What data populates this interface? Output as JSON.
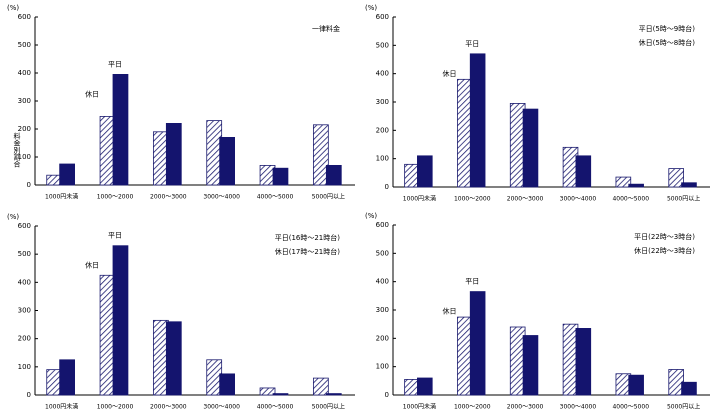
{
  "chart_data": [
    {
      "type": "bar",
      "unit_label": "(%)",
      "y_label": "料金別割合",
      "annotations": [
        "一律料金"
      ],
      "categories": [
        "1000円未満",
        "1000～2000",
        "2000～3000",
        "3000～4000",
        "4000～5000",
        "5000円以上"
      ],
      "series": [
        {
          "name": "休日",
          "color": "#1a1a6e",
          "pattern": "hatch",
          "values": [
            35,
            245,
            190,
            230,
            70,
            215
          ]
        },
        {
          "name": "平日",
          "color": "#14146e",
          "pattern": "solid",
          "values": [
            75,
            395,
            220,
            170,
            60,
            70
          ]
        }
      ],
      "ylim": [
        0,
        600
      ],
      "yticks": [
        0,
        100,
        200,
        300,
        400,
        500,
        600
      ]
    },
    {
      "type": "bar",
      "unit_label": "(%)",
      "annotations": [
        "平日(5時～9時台)",
        "休日(5時～8時台)"
      ],
      "categories": [
        "1000円未満",
        "1000～2000",
        "2000～3000",
        "3000～4000",
        "4000～5000",
        "5000円以上"
      ],
      "series": [
        {
          "name": "休日",
          "color": "#1a1a6e",
          "pattern": "hatch",
          "values": [
            80,
            380,
            295,
            140,
            35,
            65
          ]
        },
        {
          "name": "平日",
          "color": "#14146e",
          "pattern": "solid",
          "values": [
            110,
            470,
            275,
            110,
            10,
            15
          ]
        }
      ],
      "ylim": [
        0,
        600
      ],
      "yticks": [
        0,
        100,
        200,
        300,
        400,
        500,
        600
      ]
    },
    {
      "type": "bar",
      "unit_label": "(%)",
      "annotations": [
        "平日(16時～21時台)",
        "休日(17時～21時台)"
      ],
      "categories": [
        "1000円未満",
        "1000～2000",
        "2000～3000",
        "3000～4000",
        "4000～5000",
        "5000円以上"
      ],
      "series": [
        {
          "name": "休日",
          "color": "#1a1a6e",
          "pattern": "hatch",
          "values": [
            90,
            425,
            265,
            125,
            25,
            60
          ]
        },
        {
          "name": "平日",
          "color": "#14146e",
          "pattern": "solid",
          "values": [
            125,
            530,
            260,
            75,
            5,
            5
          ]
        }
      ],
      "ylim": [
        0,
        600
      ],
      "yticks": [
        0,
        100,
        200,
        300,
        400,
        500,
        600
      ]
    },
    {
      "type": "bar",
      "unit_label": "(%)",
      "annotations": [
        "平日(22時～3時台)",
        "休日(22時～3時台)"
      ],
      "categories": [
        "1000円未満",
        "1000～2000",
        "2000～3000",
        "3000～4000",
        "4000～5000",
        "5000円以上"
      ],
      "series": [
        {
          "name": "休日",
          "color": "#1a1a6e",
          "pattern": "hatch",
          "values": [
            55,
            275,
            240,
            250,
            75,
            90
          ]
        },
        {
          "name": "平日",
          "color": "#14146e",
          "pattern": "solid",
          "values": [
            60,
            365,
            210,
            235,
            70,
            45
          ]
        }
      ],
      "ylim": [
        0,
        600
      ],
      "yticks": [
        0,
        100,
        200,
        300,
        400,
        500,
        600
      ]
    }
  ]
}
